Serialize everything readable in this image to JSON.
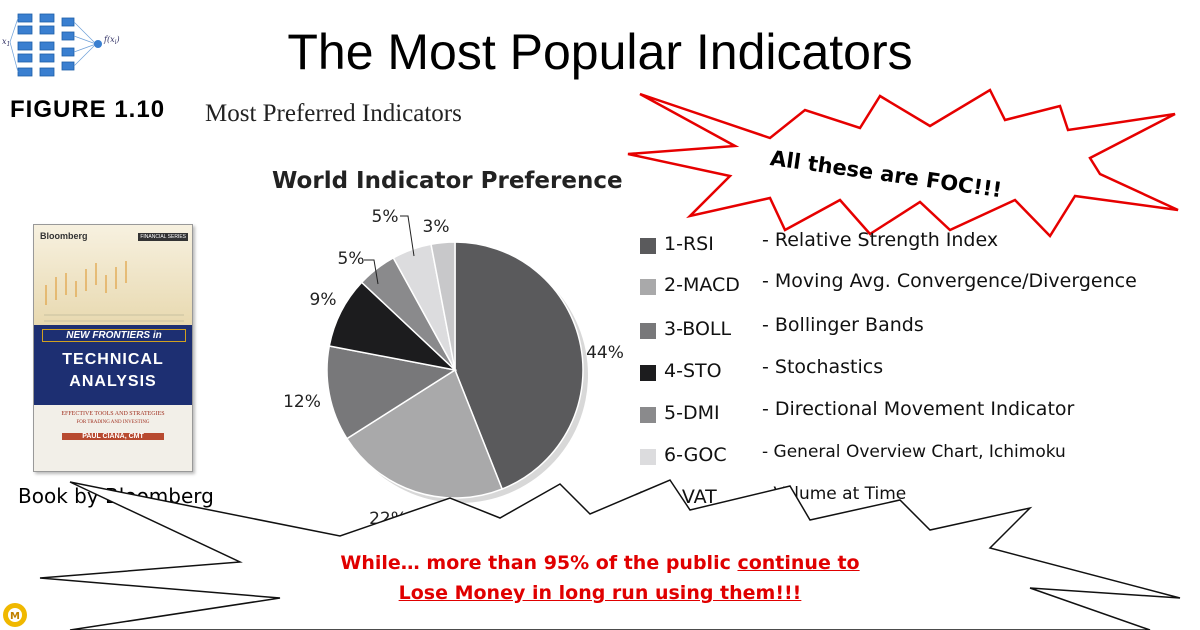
{
  "header": {
    "title": "The Most Popular Indicators",
    "figure_label": "FIGURE 1.10",
    "figure_caption": "Most Preferred Indicators",
    "logo_icon": "neural-network-icon"
  },
  "book": {
    "publisher": "Bloomberg",
    "series": "FINANCIAL SERIES",
    "title_line1": "NEW FRONTIERS in",
    "title_line2": "TECHNICAL",
    "title_line3": "ANALYSIS",
    "subtitle": "EFFECTIVE TOOLS AND STRATEGIES",
    "subtitle2": "FOR TRADING AND INVESTING",
    "author": "PAUL CIANA, CMT",
    "caption": "Book by Bloomberg"
  },
  "chart_data": {
    "type": "pie",
    "title": "World Indicator Preference",
    "categories": [
      "1-RSI",
      "2-MACD",
      "3-BOLL",
      "4-STO",
      "5-DMI",
      "6-GOC",
      "7-VAT"
    ],
    "values": [
      44,
      22,
      12,
      9,
      5,
      5,
      3
    ],
    "labels": [
      "44%",
      "22%",
      "12%",
      "9%",
      "5%",
      "5%",
      "3%"
    ],
    "colors": [
      "#5a5a5c",
      "#a9a9aa",
      "#78787a",
      "#1c1c1e",
      "#8a8a8c",
      "#dcdcde",
      "#c8c8ca"
    ],
    "legend": [
      {
        "code": "1-RSI",
        "desc": "- Relative Strength Index"
      },
      {
        "code": "2-MACD",
        "desc": "- Moving Avg. Convergence/Divergence"
      },
      {
        "code": "3-BOLL",
        "desc": "- Bollinger Bands"
      },
      {
        "code": "4-STO",
        "desc": "- Stochastics"
      },
      {
        "code": "5-DMI",
        "desc": "- Directional Movement Indicator"
      },
      {
        "code": "6-GOC",
        "desc": "- General Overview Chart, Ichimoku"
      },
      {
        "code": "7-VAT",
        "desc": "- Volume at Time"
      }
    ],
    "legend_position": "right"
  },
  "callouts": {
    "top_burst": "All these are FOC!!!",
    "top_burst_color": "#ff0000",
    "bottom_line1_a": "While… more than 95% of the public ",
    "bottom_line1_b": "continue to",
    "bottom_line2": "Lose Money in long run using them!!!",
    "bottom_color": "#e00000"
  },
  "footer": {
    "logo_icon": "sun-logo-icon"
  }
}
